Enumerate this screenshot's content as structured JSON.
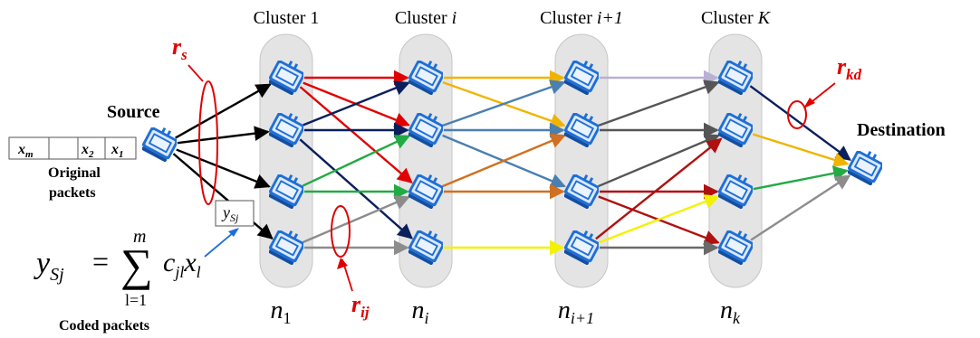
{
  "clusters": [
    {
      "label": "Cluster 1",
      "label_main": "Cluster ",
      "label_var": "1",
      "var_italic": false,
      "size_main": "n",
      "size_sub": "1",
      "sub_italic": false
    },
    {
      "label": "Cluster i",
      "label_main": "Cluster ",
      "label_var": "i",
      "var_italic": true,
      "size_main": "n",
      "size_sub": "i",
      "sub_italic": true
    },
    {
      "label": "Cluster i+1",
      "label_main": "Cluster ",
      "label_var": "i+1",
      "var_italic": true,
      "size_main": "n",
      "size_sub": "i+1",
      "sub_italic": true
    },
    {
      "label": "Cluster K",
      "label_main": "Cluster ",
      "label_var": "K",
      "var_italic": true,
      "size_main": "n",
      "size_sub": "k",
      "sub_italic": true
    }
  ],
  "source_label": "Source",
  "destination_label": "Destination",
  "original_packets": {
    "caption_line1": "Original",
    "caption_line2": "packets",
    "cells": [
      {
        "main": "x",
        "sub": "m"
      },
      {
        "main": "",
        "sub": ""
      },
      {
        "main": "x",
        "sub": "2"
      },
      {
        "main": "x",
        "sub": "1"
      }
    ]
  },
  "coded_packet": {
    "main": "y",
    "sub": "Sj"
  },
  "formula": {
    "lhs_main": "y",
    "lhs_sub": "Sj",
    "equals": "=",
    "sum_upper": "m",
    "sum_lower": "l=1",
    "c": "c",
    "c_sub": "jl",
    "x": "x",
    "x_sub": "l"
  },
  "coded_packets_caption": "Coded packets",
  "rates": [
    {
      "id": "rs",
      "main": "r",
      "sub": "s"
    },
    {
      "id": "rij",
      "main": "r",
      "sub": "ij"
    },
    {
      "id": "rkd",
      "main": "r",
      "sub": "kd"
    }
  ],
  "colors": {
    "cluster_fill": "#e4e4e4",
    "node_blue": "#1f6fd6",
    "rate_red": "#e00000",
    "callout_blue": "#1f6fd6"
  },
  "links": {
    "source_to_c1": {
      "color": "#000000",
      "pairs": [
        [
          0,
          0
        ],
        [
          0,
          1
        ],
        [
          0,
          2
        ],
        [
          0,
          3
        ]
      ]
    },
    "c1_to_ci": [
      {
        "color": "#e00000",
        "pairs": [
          [
            0,
            0
          ],
          [
            0,
            1
          ],
          [
            0,
            2
          ]
        ]
      },
      {
        "color": "#0a1f5c",
        "pairs": [
          [
            1,
            0
          ],
          [
            1,
            1
          ],
          [
            1,
            3
          ]
        ]
      },
      {
        "color": "#22aa44",
        "pairs": [
          [
            2,
            1
          ],
          [
            2,
            2
          ]
        ]
      },
      {
        "color": "#8c8c8c",
        "pairs": [
          [
            3,
            2
          ],
          [
            3,
            3
          ]
        ]
      }
    ],
    "ci_to_ci1": [
      {
        "color": "#f0b400",
        "pairs": [
          [
            0,
            0
          ],
          [
            0,
            1
          ]
        ]
      },
      {
        "color": "#4a7fb0",
        "pairs": [
          [
            1,
            0
          ],
          [
            1,
            1
          ],
          [
            1,
            2
          ]
        ]
      },
      {
        "color": "#d07020",
        "pairs": [
          [
            2,
            1
          ],
          [
            2,
            2
          ]
        ]
      },
      {
        "color": "#f2f200",
        "pairs": [
          [
            3,
            3
          ]
        ]
      }
    ],
    "ci1_to_ck": [
      {
        "color": "#b9b0d4",
        "pairs": [
          [
            0,
            0
          ]
        ]
      },
      {
        "color": "#555555",
        "pairs": [
          [
            1,
            0
          ],
          [
            1,
            1
          ],
          [
            2,
            1
          ]
        ]
      },
      {
        "color": "#b01010",
        "pairs": [
          [
            2,
            2
          ],
          [
            2,
            3
          ],
          [
            3,
            1
          ]
        ]
      },
      {
        "color": "#f2f200",
        "pairs": [
          [
            3,
            2
          ]
        ]
      },
      {
        "color": "#6a6a6a",
        "pairs": [
          [
            3,
            3
          ]
        ]
      }
    ],
    "ck_to_dest": [
      {
        "color": "#0a1f5c",
        "from": 0
      },
      {
        "color": "#f0b400",
        "from": 1
      },
      {
        "color": "#22aa44",
        "from": 2
      },
      {
        "color": "#8c8c8c",
        "from": 3
      }
    ]
  }
}
